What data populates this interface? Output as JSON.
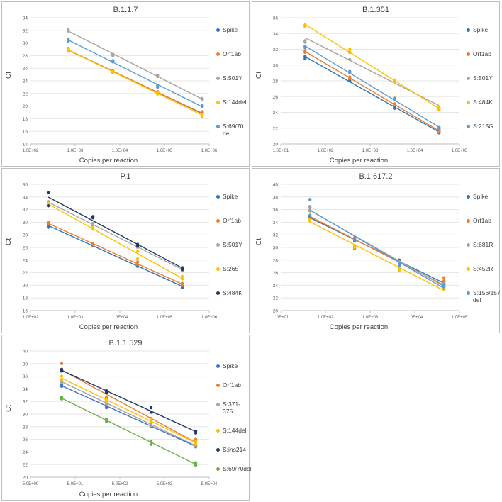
{
  "chart_data": [
    {
      "type": "scatter",
      "title": "B.1.1.7",
      "xlabel": "Copies per reaction",
      "ylabel": "Ct",
      "xscale": "log",
      "xlim": [
        100,
        1000000
      ],
      "ylim": [
        14,
        34
      ],
      "yticks": [
        "14",
        "16",
        "18",
        "20",
        "22",
        "24",
        "26",
        "28",
        "30",
        "32",
        "34"
      ],
      "xticks": [
        "1.0E+02",
        "1.0E+03",
        "1.0E+04",
        "1.0E+05",
        "1.0E+06"
      ],
      "series": [
        {
          "name": "Spike",
          "color": "#2e75b6",
          "x": [
            700,
            700,
            7000,
            7000,
            70000,
            70000,
            700000,
            700000
          ],
          "y": [
            28.9,
            29.1,
            25.3,
            25.5,
            22.0,
            22.2,
            18.8,
            19.0
          ]
        },
        {
          "name": "Orf1ab",
          "color": "#ed7d31",
          "x": [
            700,
            700,
            7000,
            7000,
            70000,
            70000,
            700000,
            700000
          ],
          "y": [
            28.7,
            29.0,
            25.4,
            25.6,
            22.0,
            22.3,
            18.7,
            19.1
          ]
        },
        {
          "name": "S:501Y",
          "color": "#a5a5a5",
          "x": [
            700,
            700,
            7000,
            7000,
            70000,
            70000,
            700000,
            700000
          ],
          "y": [
            31.9,
            32.1,
            28.0,
            28.2,
            24.7,
            24.9,
            21.0,
            21.2
          ]
        },
        {
          "name": "S:144del",
          "color": "#ffc000",
          "x": [
            700,
            700,
            7000,
            7000,
            70000,
            70000,
            700000,
            700000
          ],
          "y": [
            28.8,
            29.0,
            25.3,
            25.5,
            21.9,
            22.2,
            18.4,
            18.7
          ]
        },
        {
          "name": "S:69/70 del",
          "color": "#5b9bd5",
          "x": [
            700,
            700,
            7000,
            7000,
            70000,
            70000,
            700000,
            700000
          ],
          "y": [
            30.3,
            30.6,
            27.0,
            27.2,
            23.0,
            23.3,
            19.9,
            20.1
          ]
        }
      ]
    },
    {
      "type": "scatter",
      "title": "B.1.351",
      "xlabel": "Copies per reaction",
      "ylabel": "Ct",
      "xscale": "log",
      "xlim": [
        10,
        100000
      ],
      "ylim": [
        20,
        36
      ],
      "yticks": [
        "20",
        "22",
        "24",
        "26",
        "28",
        "30",
        "32",
        "34",
        "36"
      ],
      "xticks": [
        "1.0E+01",
        "1.0E+02",
        "1.0E+03",
        "1.0E+04",
        "1.0E+05"
      ],
      "series": [
        {
          "name": "Spike",
          "color": "#2e75b6",
          "x": [
            35,
            35,
            350,
            350,
            3500,
            3500,
            35000,
            35000
          ],
          "y": [
            30.8,
            31.1,
            28.0,
            28.2,
            24.5,
            24.7,
            21.4,
            21.6
          ]
        },
        {
          "name": "Orf1ab",
          "color": "#ed7d31",
          "x": [
            35,
            35,
            350,
            350,
            3500,
            3500,
            35000,
            35000
          ],
          "y": [
            31.6,
            31.8,
            28.3,
            28.5,
            24.9,
            25.1,
            21.5,
            21.8
          ]
        },
        {
          "name": "S:501Y",
          "color": "#a5a5a5",
          "x": [
            35,
            35,
            350,
            350,
            3500,
            3500,
            35000,
            35000
          ],
          "y": [
            32.9,
            33.1,
            30.7,
            31.6,
            27.9,
            28.1,
            24.4,
            24.6
          ]
        },
        {
          "name": "S:484K",
          "color": "#ffc000",
          "x": [
            35,
            35,
            350,
            350,
            3500,
            3500,
            35000,
            35000
          ],
          "y": [
            34.9,
            35.1,
            31.7,
            32.0,
            27.9,
            28.1,
            24.3,
            24.6
          ]
        },
        {
          "name": "S:215G",
          "color": "#5b9bd5",
          "x": [
            35,
            35,
            350,
            350,
            3500,
            3500,
            35000,
            35000
          ],
          "y": [
            32.2,
            32.4,
            29.0,
            29.2,
            25.6,
            25.8,
            21.9,
            22.1
          ]
        }
      ]
    },
    {
      "type": "scatter",
      "title": "P.1",
      "xlabel": "Copies per reaction",
      "ylabel": "Ct",
      "xscale": "log",
      "xlim": [
        100,
        1000000
      ],
      "ylim": [
        16,
        36
      ],
      "yticks": [
        "16",
        "18",
        "20",
        "22",
        "24",
        "26",
        "28",
        "30",
        "32",
        "34",
        "36"
      ],
      "xticks": [
        "1.0E+02",
        "1.0E+03",
        "1.0E+04",
        "1.0E+05",
        "1.0E+06"
      ],
      "series": [
        {
          "name": "Spike",
          "color": "#2e75b6",
          "x": [
            250,
            250,
            2500,
            2500,
            25000,
            25000,
            250000,
            250000
          ],
          "y": [
            29.2,
            29.5,
            26.3,
            26.5,
            23.0,
            23.2,
            19.6,
            19.9
          ]
        },
        {
          "name": "Orf1ab",
          "color": "#ed7d31",
          "x": [
            250,
            250,
            2500,
            2500,
            25000,
            25000,
            250000,
            250000
          ],
          "y": [
            29.7,
            30.0,
            26.4,
            26.6,
            23.3,
            23.7,
            20.0,
            20.3
          ]
        },
        {
          "name": "S:501Y",
          "color": "#a5a5a5",
          "x": [
            250,
            250,
            2500,
            2500,
            25000,
            25000,
            250000,
            250000
          ],
          "y": [
            33.0,
            33.3,
            29.5,
            29.8,
            26.0,
            26.3,
            22.3,
            22.6
          ]
        },
        {
          "name": "S:265",
          "color": "#ffc000",
          "x": [
            250,
            250,
            2500,
            2500,
            25000,
            25000,
            250000,
            250000
          ],
          "y": [
            32.7,
            33.1,
            28.9,
            29.2,
            24.2,
            25.4,
            21.0,
            21.4
          ]
        },
        {
          "name": "S:484K",
          "color": "#1f3864",
          "x": [
            250,
            250,
            2500,
            2500,
            25000,
            25000,
            250000,
            250000
          ],
          "y": [
            32.6,
            34.7,
            30.7,
            30.9,
            26.2,
            26.5,
            22.5,
            22.8
          ]
        }
      ]
    },
    {
      "type": "scatter",
      "title": "B.1.617.2",
      "xlabel": "Copies per reaction",
      "ylabel": "Ct",
      "xscale": "log",
      "xlim": [
        10,
        100000
      ],
      "ylim": [
        20,
        40
      ],
      "yticks": [
        "20",
        "22",
        "24",
        "26",
        "28",
        "30",
        "32",
        "34",
        "36",
        "38",
        "40"
      ],
      "xticks": [
        "1.0E+01",
        "1.0E+02",
        "1.0E+03",
        "1.0E+04",
        "1.0E+05"
      ],
      "series": [
        {
          "name": "Spike",
          "color": "#2e75b6",
          "x": [
            45,
            45,
            450,
            450,
            4500,
            4500,
            45000,
            45000
          ],
          "y": [
            34.6,
            34.9,
            31.0,
            31.3,
            27.7,
            28.0,
            24.2,
            24.5
          ]
        },
        {
          "name": "Orf1ab",
          "color": "#ed7d31",
          "x": [
            45,
            45,
            450,
            450,
            4500,
            4500,
            45000,
            45000
          ],
          "y": [
            35.8,
            36.3,
            29.8,
            30.1,
            26.8,
            27.1,
            24.7,
            25.2
          ]
        },
        {
          "name": "S:681R",
          "color": "#a5a5a5",
          "x": [
            45,
            45,
            450,
            450,
            4500,
            4500,
            45000,
            45000
          ],
          "y": [
            35.9,
            36.5,
            31.4,
            31.6,
            27.4,
            27.7,
            24.0,
            24.3
          ]
        },
        {
          "name": "S:452R",
          "color": "#ffc000",
          "x": [
            45,
            45,
            450,
            450,
            4500,
            4500,
            45000,
            45000
          ],
          "y": [
            34.2,
            34.5,
            30.0,
            30.3,
            26.4,
            26.7,
            23.3,
            23.6
          ]
        },
        {
          "name": "S:156/157 del",
          "color": "#5b9bd5",
          "x": [
            45,
            45,
            450,
            450,
            4500,
            4500,
            45000,
            45000
          ],
          "y": [
            35.1,
            37.6,
            31.2,
            31.5,
            27.1,
            27.4,
            23.8,
            24.1
          ]
        }
      ]
    },
    {
      "type": "scatter",
      "title": "B.1.1.529",
      "xlabel": "Copies per reaction",
      "ylabel": "Ct",
      "xscale": "log",
      "xlim": [
        5,
        50000
      ],
      "ylim": [
        20,
        40
      ],
      "yticks": [
        "20",
        "22",
        "24",
        "26",
        "28",
        "30",
        "32",
        "34",
        "36",
        "38",
        "40"
      ],
      "xticks": [
        "5.0E+00",
        "5.0E+01",
        "5.0E+02",
        "5.0E+03",
        "5.0E+04"
      ],
      "series": [
        {
          "name": "Spike",
          "color": "#4472c4",
          "x": [
            25,
            25,
            250,
            250,
            2500,
            2500,
            25000,
            25000
          ],
          "y": [
            34.4,
            34.7,
            31.0,
            31.3,
            28.0,
            28.3,
            24.8,
            25.0
          ]
        },
        {
          "name": "Orf1ab",
          "color": "#ed7d31",
          "x": [
            25,
            25,
            250,
            250,
            2500,
            2500,
            25000,
            25000
          ],
          "y": [
            37.0,
            38.0,
            32.3,
            32.6,
            29.0,
            29.3,
            25.7,
            26.0
          ]
        },
        {
          "name": "S:371-375",
          "color": "#a5a5a5",
          "x": [
            25,
            25,
            250,
            250,
            2500,
            2500,
            25000,
            25000
          ],
          "y": [
            35.0,
            35.4,
            31.5,
            31.8,
            28.2,
            28.5,
            24.9,
            25.2
          ]
        },
        {
          "name": "S:144del",
          "color": "#ffc000",
          "x": [
            25,
            25,
            250,
            250,
            2500,
            2500,
            25000,
            25000
          ],
          "y": [
            35.5,
            36.0,
            32.0,
            32.3,
            28.8,
            29.1,
            25.3,
            25.6
          ]
        },
        {
          "name": "S:ins214",
          "color": "#1f3864",
          "x": [
            25,
            25,
            250,
            250,
            2500,
            2500,
            25000,
            25000
          ],
          "y": [
            36.8,
            37.1,
            33.4,
            33.7,
            30.3,
            31.0,
            27.0,
            27.3
          ]
        },
        {
          "name": "S:69/70del",
          "color": "#70ad47",
          "x": [
            25,
            25,
            250,
            250,
            2500,
            2500,
            25000,
            25000
          ],
          "y": [
            32.4,
            32.7,
            28.8,
            29.2,
            25.2,
            25.7,
            21.9,
            22.3
          ]
        }
      ]
    }
  ]
}
